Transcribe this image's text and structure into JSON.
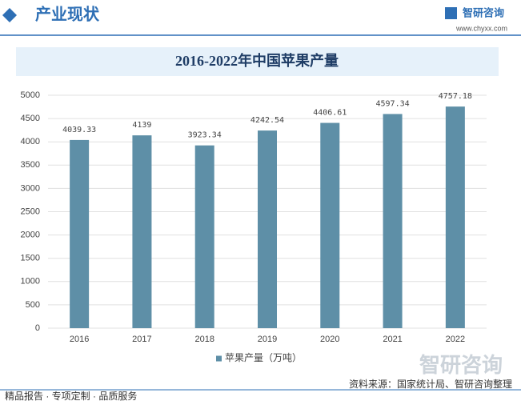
{
  "page": {
    "section": "产业现状",
    "brand": "智研咨询",
    "url": "www.chyxx.com",
    "watermark": "智研咨询",
    "source": "资料来源：国家统计局、智研咨询整理",
    "footer": "精品报告 · 专项定制 · 品质服务"
  },
  "chart_data": {
    "type": "bar",
    "title": "2016-2022年中国苹果产量",
    "categories": [
      "2016",
      "2017",
      "2018",
      "2019",
      "2020",
      "2021",
      "2022"
    ],
    "series": [
      {
        "name": "苹果产量（万吨）",
        "color": "#5e8fa7",
        "values": [
          4039.33,
          4139,
          3923.34,
          4242.54,
          4406.61,
          4597.34,
          4757.18
        ]
      }
    ],
    "ylim": [
      0,
      5000
    ],
    "yticks": [
      0,
      500,
      1000,
      1500,
      2000,
      2500,
      3000,
      3500,
      4000,
      4500,
      5000
    ],
    "grid": true,
    "legend": "bottom"
  }
}
